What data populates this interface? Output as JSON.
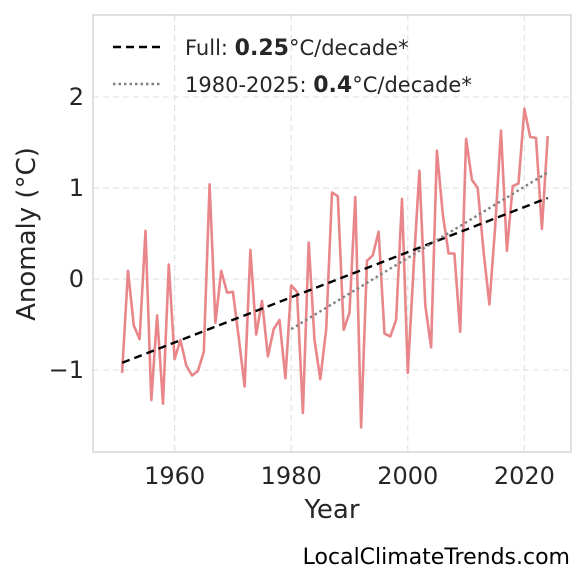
{
  "chart_data": {
    "type": "line",
    "xlabel": "Year",
    "ylabel": "Anomaly (°C)",
    "xlim": [
      1946,
      2028
    ],
    "ylim": [
      -1.9,
      2.9
    ],
    "xticks": [
      1960,
      1980,
      2000,
      2020
    ],
    "yticks": [
      -1,
      0,
      1,
      2
    ],
    "ytick_labels": [
      "−1",
      "0",
      "1",
      "2"
    ],
    "grid": true,
    "legend_position": "top-left",
    "series": [
      {
        "color": "#e8868a",
        "x": [
          1951,
          1952,
          1953,
          1954,
          1955,
          1956,
          1957,
          1958,
          1959,
          1960,
          1961,
          1962,
          1963,
          1964,
          1965,
          1966,
          1967,
          1968,
          1969,
          1970,
          1971,
          1972,
          1973,
          1974,
          1975,
          1976,
          1977,
          1978,
          1979,
          1980,
          1981,
          1982,
          1983,
          1984,
          1985,
          1986,
          1987,
          1988,
          1989,
          1990,
          1991,
          1992,
          1993,
          1994,
          1995,
          1996,
          1997,
          1998,
          1999,
          2000,
          2001,
          2002,
          2003,
          2004,
          2005,
          2006,
          2007,
          2008,
          2009,
          2010,
          2011,
          2012,
          2013,
          2014,
          2015,
          2016,
          2017,
          2018,
          2019,
          2020,
          2021,
          2022,
          2023,
          2024
        ],
        "y": [
          -1.03,
          0.09,
          -0.51,
          -0.66,
          0.53,
          -1.33,
          -0.4,
          -1.37,
          0.16,
          -0.88,
          -0.67,
          -0.95,
          -1.06,
          -1.01,
          -0.8,
          1.04,
          -0.48,
          0.09,
          -0.15,
          -0.14,
          -0.64,
          -1.18,
          0.32,
          -0.61,
          -0.24,
          -0.85,
          -0.55,
          -0.45,
          -1.09,
          -0.07,
          -0.14,
          -1.47,
          0.4,
          -0.67,
          -1.1,
          -0.55,
          0.95,
          0.91,
          -0.56,
          -0.37,
          0.9,
          -1.63,
          0.2,
          0.26,
          0.52,
          -0.6,
          -0.63,
          -0.45,
          0.88,
          -1.03,
          0.12,
          1.19,
          -0.29,
          -0.75,
          1.41,
          0.71,
          0.28,
          0.28,
          -0.58,
          1.54,
          1.09,
          1.0,
          0.3,
          -0.28,
          0.58,
          1.63,
          0.31,
          1.02,
          1.05,
          1.87,
          1.56,
          1.55,
          0.55,
          1.57
        ]
      }
    ],
    "trends": [
      {
        "label_prefix": "Full: ",
        "label_value": "0.25",
        "label_suffix": "°C/decade*",
        "x": [
          1951,
          2024
        ],
        "y": [
          -0.92,
          0.89
        ],
        "color": "#000000",
        "style": "dashed"
      },
      {
        "label_prefix": "1980-2025: ",
        "label_value": "0.4",
        "label_suffix": "°C/decade*",
        "x": [
          1980,
          2024
        ],
        "y": [
          -0.55,
          1.17
        ],
        "color": "#808080",
        "style": "dotted"
      }
    ]
  },
  "credit": "LocalClimateTrends.com"
}
